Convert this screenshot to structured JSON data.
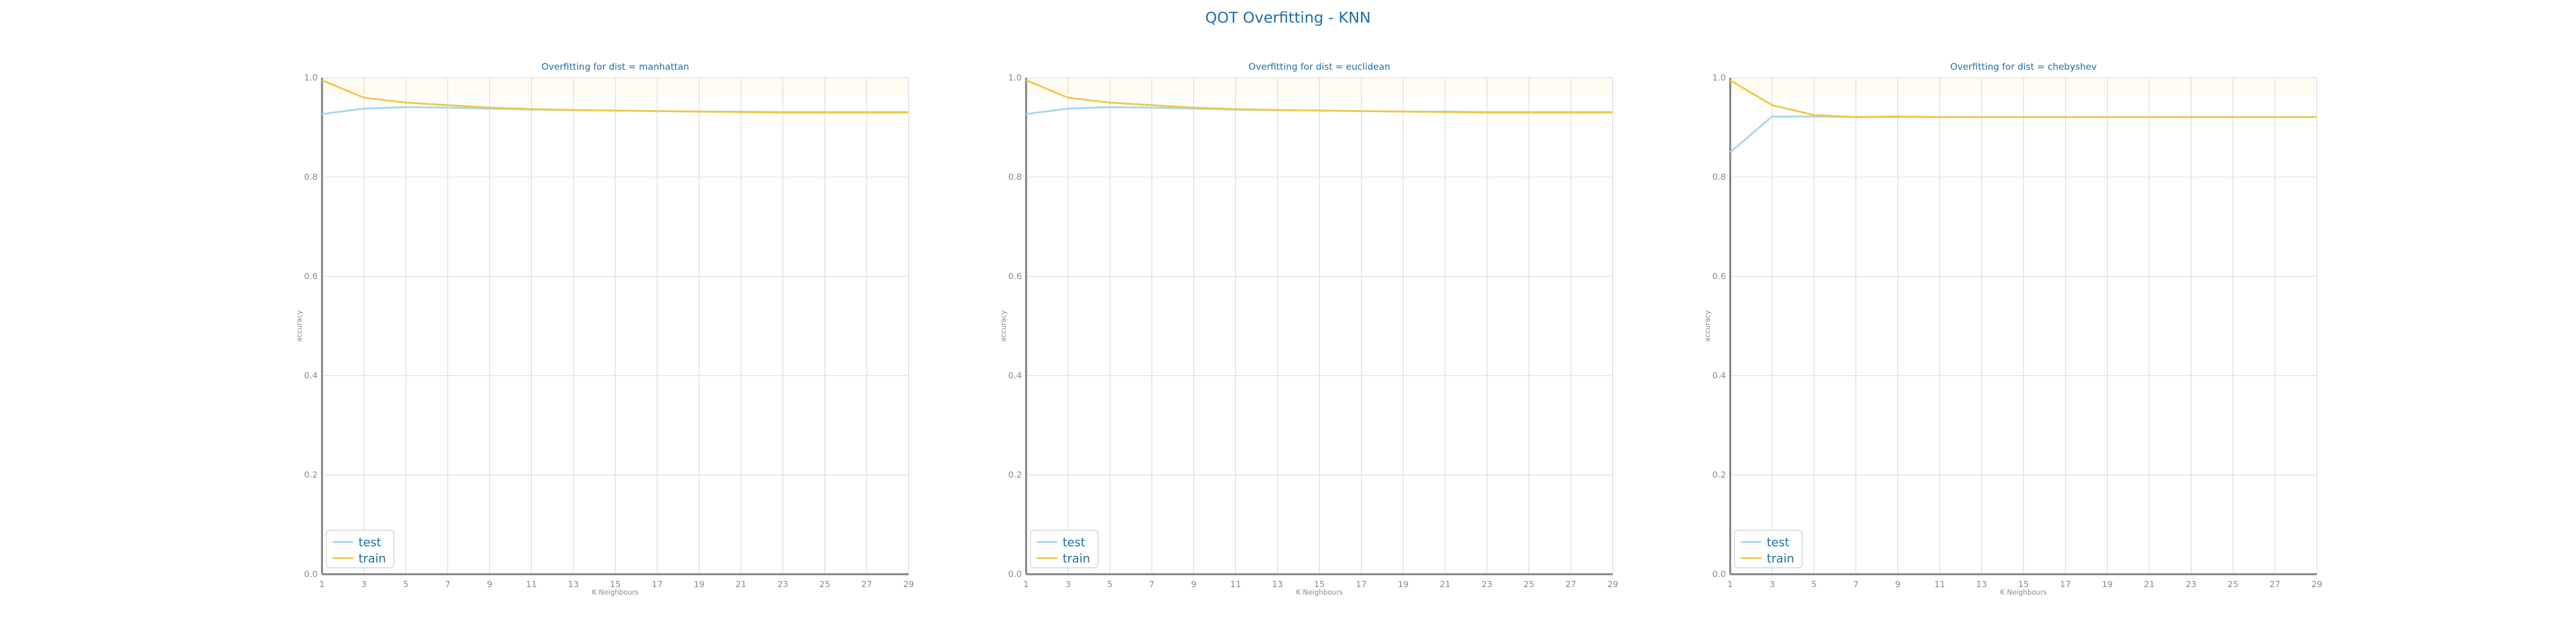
{
  "figure": {
    "title": "QOT Overfitting - KNN"
  },
  "colors": {
    "test": "#a8d8ea",
    "train": "#f0c94a",
    "title": "#1f6fa5",
    "grid": "#d9d9d9",
    "axis": "#808080",
    "tick": "#8a8a8a",
    "plot_bg_band": "#fffbf0"
  },
  "chart_data": [
    {
      "type": "line",
      "title": "Overfitting for dist = manhattan",
      "xlabel": "K Neighbours",
      "ylabel": "accuracy",
      "x": [
        1,
        3,
        5,
        7,
        9,
        11,
        13,
        15,
        17,
        19,
        21,
        23,
        25,
        27,
        29
      ],
      "xticks": [
        "1",
        "3",
        "5",
        "7",
        "9",
        "11",
        "13",
        "15",
        "17",
        "19",
        "21",
        "23",
        "25",
        "27",
        "29"
      ],
      "yticks": [
        "0.0",
        "0.2",
        "0.4",
        "0.6",
        "0.8",
        "1.0"
      ],
      "ylim": [
        0,
        1
      ],
      "xlim": [
        1,
        29
      ],
      "grid": true,
      "legend_position": "lower-left",
      "series": [
        {
          "name": "test",
          "values": [
            0.927,
            0.938,
            0.941,
            0.94,
            0.938,
            0.936,
            0.935,
            0.934,
            0.933,
            0.932,
            0.932,
            0.931,
            0.931,
            0.931,
            0.931
          ]
        },
        {
          "name": "train",
          "values": [
            0.995,
            0.96,
            0.95,
            0.945,
            0.94,
            0.937,
            0.935,
            0.934,
            0.933,
            0.932,
            0.931,
            0.93,
            0.93,
            0.93,
            0.93
          ]
        }
      ]
    },
    {
      "type": "line",
      "title": "Overfitting for dist = euclidean",
      "xlabel": "K Neighbours",
      "ylabel": "accuracy",
      "x": [
        1,
        3,
        5,
        7,
        9,
        11,
        13,
        15,
        17,
        19,
        21,
        23,
        25,
        27,
        29
      ],
      "xticks": [
        "1",
        "3",
        "5",
        "7",
        "9",
        "11",
        "13",
        "15",
        "17",
        "19",
        "21",
        "23",
        "25",
        "27",
        "29"
      ],
      "yticks": [
        "0.0",
        "0.2",
        "0.4",
        "0.6",
        "0.8",
        "1.0"
      ],
      "ylim": [
        0,
        1
      ],
      "xlim": [
        1,
        29
      ],
      "grid": true,
      "legend_position": "lower-left",
      "series": [
        {
          "name": "test",
          "values": [
            0.927,
            0.938,
            0.941,
            0.94,
            0.938,
            0.936,
            0.935,
            0.934,
            0.933,
            0.932,
            0.932,
            0.931,
            0.931,
            0.931,
            0.931
          ]
        },
        {
          "name": "train",
          "values": [
            0.995,
            0.96,
            0.95,
            0.945,
            0.94,
            0.937,
            0.935,
            0.934,
            0.933,
            0.932,
            0.931,
            0.93,
            0.93,
            0.93,
            0.93
          ]
        }
      ]
    },
    {
      "type": "line",
      "title": "Overfitting for dist = chebyshev",
      "xlabel": "K Neighbours",
      "ylabel": "accuracy",
      "x": [
        1,
        3,
        5,
        7,
        9,
        11,
        13,
        15,
        17,
        19,
        21,
        23,
        25,
        27,
        29
      ],
      "xticks": [
        "1",
        "3",
        "5",
        "7",
        "9",
        "11",
        "13",
        "15",
        "17",
        "19",
        "21",
        "23",
        "25",
        "27",
        "29"
      ],
      "yticks": [
        "0.0",
        "0.2",
        "0.4",
        "0.6",
        "0.8",
        "1.0"
      ],
      "ylim": [
        0,
        1
      ],
      "xlim": [
        1,
        29
      ],
      "grid": true,
      "legend_position": "lower-left",
      "series": [
        {
          "name": "test",
          "values": [
            0.85,
            0.922,
            0.922,
            0.921,
            0.921,
            0.921,
            0.921,
            0.921,
            0.921,
            0.921,
            0.921,
            0.921,
            0.921,
            0.921,
            0.921
          ]
        },
        {
          "name": "train",
          "values": [
            0.995,
            0.945,
            0.925,
            0.921,
            0.922,
            0.921,
            0.921,
            0.921,
            0.921,
            0.921,
            0.921,
            0.921,
            0.921,
            0.921,
            0.921
          ]
        }
      ]
    }
  ]
}
